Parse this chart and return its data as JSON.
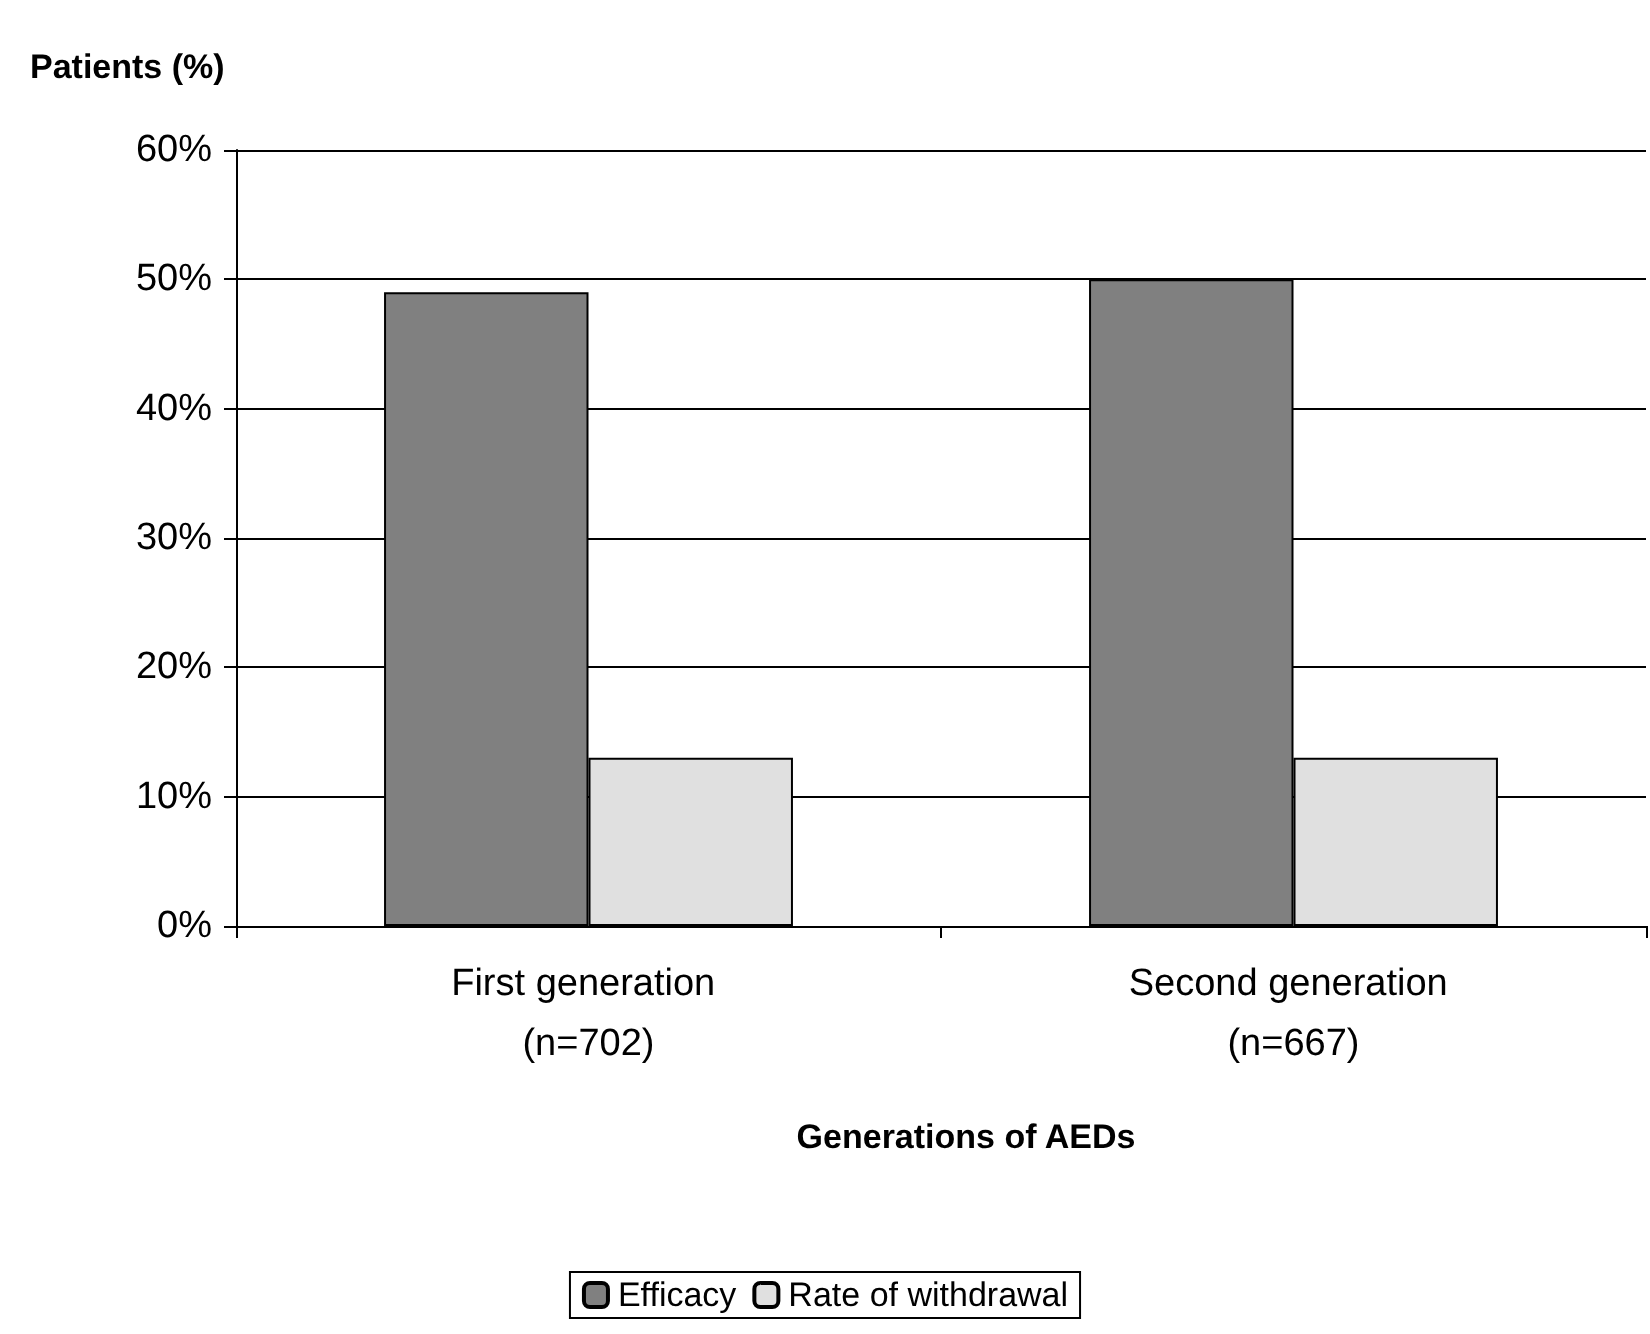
{
  "chart_data": {
    "type": "bar",
    "ylabel": "Patients (%)",
    "xlabel": "Generations of AEDs",
    "categories": [
      "First generation (n=702)",
      "Second generation (n=667)"
    ],
    "series": [
      {
        "name": "Efficacy",
        "color": "#808080",
        "values": [
          49,
          50
        ]
      },
      {
        "name": "Rate of withdrawal",
        "color": "#e0e0e0",
        "values": [
          13,
          13
        ]
      }
    ],
    "ylim": [
      0,
      60
    ],
    "yticks": [
      {
        "value": 0,
        "label": "0%"
      },
      {
        "value": 10,
        "label": "10%"
      },
      {
        "value": 20,
        "label": "20%"
      },
      {
        "value": 30,
        "label": "30%"
      },
      {
        "value": 40,
        "label": "40%"
      },
      {
        "value": 50,
        "label": "50%"
      },
      {
        "value": 60,
        "label": "60%"
      }
    ],
    "grid": "y",
    "legend": "bottom"
  }
}
